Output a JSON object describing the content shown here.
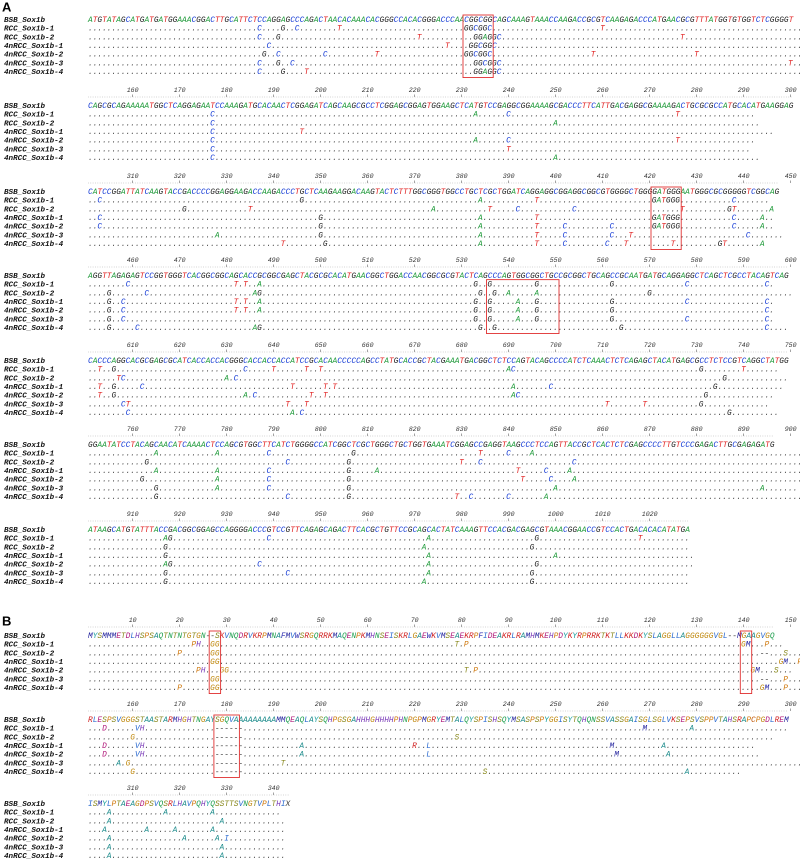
{
  "panels": [
    {
      "label": "A",
      "colors": {
        "A": "#1f9a3a",
        "C": "#1a3fd6",
        "G": "#222222",
        "T": "#e01f1f",
        ".": "#444444"
      },
      "blocks": [
        {
          "rows": [
            {
              "name": "BSB_Sox1b",
              "seq": "ATGTATAGCATGATGATGGAAACGGACTTGCATTCTCCAGGAGCCCAGACTAACACAAACACGGGCCACACGGGACCCAACGGCGGCAGCAAAGTAAACCAAGACCGCGTCAAGAGACCCATGAACGCGTTTATGGTGTGGTCTCGGGGT"
            },
            {
              "name": "RCC_Sox1b-1",
              "seq": "....................................C....G..C........T..........................GGCGGC.......................T..........................................."
            },
            {
              "name": "RCC_Sox1b-2",
              "seq": "....................................C...G.............................T...........GGAGGC......................................T........................."
            },
            {
              "name": "4nRCC_Sox1b-1",
              "seq": "......................................C.....................................T....GGCGGC......................................................................"
            },
            {
              "name": "4nRCC_Sox1b-2",
              "seq": ".....................................G..C.........C..........T..................GGCGGC.....................T.....................T......................."
            },
            {
              "name": "4nRCC_Sox1b-3",
              "seq": "....................................C...G..C......................................GGCGGC.............................................................T........"
            },
            {
              "name": "4nRCC_Sox1b-4",
              "seq": "....................................C....G....T...................................GGAGGC......................................................................"
            }
          ]
        },
        {
          "ruler": [
            160,
            170,
            180,
            190,
            200,
            210,
            220,
            230,
            240,
            250,
            260,
            270,
            280,
            290,
            300
          ],
          "rows": [
            {
              "name": "BSB_Sox1b",
              "seq": "CAGCGCAGAAAAATGGCTCAGGAGAATCCAAAGATGCACAACTCGGAGATCAGCAAGCGCCTCGGAGCGGAGTGGAAGCTCATGTCCGAGGCGGAAAAGCGACCCTTCATTGACGAGGCGAAAAGACTGCGCGCCATGCACATGAAGGAG"
            },
            {
              "name": "RCC_Sox1b-1",
              "seq": "..........................C.......................................................A......C...................................T................"
            },
            {
              "name": "RCC_Sox1b-2",
              "seq": "..........................C........................................................................A..........................................."
            },
            {
              "name": "4nRCC_Sox1b-1",
              "seq": "..........................C..................T...................................................................................................."
            },
            {
              "name": "4nRCC_Sox1b-2",
              "seq": "..........................C.......................................................A......C...................................T................"
            },
            {
              "name": "4nRCC_Sox1b-3",
              "seq": "..........................C..............................................................T..................................................."
            },
            {
              "name": "4nRCC_Sox1b-4",
              "seq": "..........................C........................................................................A..........................................."
            }
          ]
        },
        {
          "ruler": [
            310,
            320,
            330,
            340,
            350,
            360,
            370,
            380,
            390,
            400,
            410,
            420,
            430,
            440,
            450
          ],
          "rows": [
            {
              "name": "BSB_Sox1b",
              "seq": "CATCCGGATTATCAAGTACCGACCCCGGAGGAAGACCAAGACCCTGCTCAAGAAGGACAAGTACTCTTTGGCGGGTGGCCTGCTCGCTGGATCAGGAGGCGGAGGCGGCGTGGGGCTGGGGATGGGAATGGGCGCGGGGGTCGGCAG"
            },
            {
              "name": "RCC_Sox1b-1",
              "seq": "..C..........................................G.....................................A...........T........................GATGGG...........C......."
            },
            {
              "name": "RCC_Sox1b-2",
              "seq": "....................G.............T......................................A...........T.....C...........C......................T.........GT.......A"
            },
            {
              "name": "4nRCC_Sox1b-1",
              "seq": "..C..............................................G.................................A...........T........................GATGGG...........C.....A.."
            },
            {
              "name": "4nRCC_Sox1b-2",
              "seq": "..C..............................................G.................................A...........T.....C.........C........GATGGG...........C.....A.."
            },
            {
              "name": "4nRCC_Sox1b-3",
              "seq": "...........................A.....................G.................................A...........T.....C.........C...T........................C......."
            },
            {
              "name": "4nRCC_Sox1b-4",
              "seq": ".........................................T........G................................A...........T.....C........C...T.........T.........GT.......A"
            }
          ]
        },
        {
          "ruler": [
            460,
            470,
            480,
            490,
            500,
            510,
            520,
            530,
            540,
            550,
            560,
            570,
            580,
            590,
            600
          ],
          "rows": [
            {
              "name": "BSB_Sox1b",
              "seq": "AGGTTAGAGAGTCCGGTGGGTCACGGCGGCAGCACCGCGGCGAGCTACGCGCACATGAACGGCTGGACCAACGGCGCGTACTCAGCCCAGTGGCGGCTGCCGCGGCTGCAGCCGCAATGATGCAGGAGGCTCAGCTCGCCTACAGTCAG"
            },
            {
              "name": "RCC_Sox1b-1",
              "seq": "........C......................T.T..A.............................................G..G.........G...............G...............C................C."
            },
            {
              "name": "RCC_Sox1b-2",
              "seq": "....G.......C......................AG..............................................G..G..A.....A.......................G.............................."
            },
            {
              "name": "4nRCC_Sox1b-1",
              "seq": "....G..C.......................T.T..A.............................................G..G.....A...G...............G...............C................C."
            },
            {
              "name": "4nRCC_Sox1b-2",
              "seq": "....G..C.......................T.T..A.............................................G..G.....A...G...............G................................C."
            },
            {
              "name": "4nRCC_Sox1b-3",
              "seq": "....G..C..........................................................................G..G.....A...G...............G...............C................C."
            },
            {
              "name": "4nRCC_Sox1b-4",
              "seq": "....G.....C........................AG..............................................G..G..........................G..............................C...."
            }
          ]
        },
        {
          "ruler": [
            610,
            620,
            630,
            640,
            650,
            660,
            670,
            680,
            690,
            700,
            710,
            720,
            730,
            740,
            750
          ],
          "rows": [
            {
              "name": "BSB_Sox1b",
              "seq": "CACCCAGGCACGCGAGCGCATCACCACCACGGGCACCACCACCATCCGCACAACCCCCAGCCTATGCACCGCTACGAAATGACGGCTCTCCAGTACAGCCCCATCTCAAACTCTCAGAGCTACATGAGCGCCTCTCCGTCAGGCTATGG"
            },
            {
              "name": "RCC_Sox1b-1",
              "seq": "..T..G...........................C.....T......T..T.......................................AC.......................................G........T......."
            },
            {
              "name": "RCC_Sox1b-2",
              "seq": "......TC.....................A.C.......................................................................................................G............."
            },
            {
              "name": "4nRCC_Sox1b-1",
              "seq": "..T..G.....C...............................T......T.T.....................................A.......C..................................G.............."
            },
            {
              "name": "4nRCC_Sox1b-2",
              "seq": "..T..G...........................A.C...........T..T.......................................AC.......................................G.............."
            },
            {
              "name": "4nRCC_Sox1b-3",
              "seq": ".......CT.................................T...T...............................................................T.......T...........G.............."
            },
            {
              "name": "4nRCC_Sox1b-4",
              "seq": "........C..................................A.C..........................................................................................G.........."
            }
          ]
        },
        {
          "ruler": [
            760,
            770,
            780,
            790,
            800,
            810,
            820,
            830,
            840,
            850,
            860,
            870,
            880,
            890,
            900
          ],
          "rows": [
            {
              "name": "BSB_Sox1b",
              "seq": "GGAATATCCTACAGCAACATCAAAACTCCAGCGTGGCTTCATCTGGGGCCATCGGCTCGCTGGGCTGCTGGTGAAATCGGAGCCGAGGTAAGCCCTCCAGTTACCGCTCACTCTCGAGCCCCTTGTCCCGAGACTTGCGAGAGATG"
            },
            {
              "name": "RCC_Sox1b-1",
              "seq": "..............A............A..........C.................G..........................T.....C....A........................................................."
            },
            {
              "name": "RCC_Sox1b-2",
              "seq": "............G.............................C............G.......................T...C...................C......................................................"
            },
            {
              "name": "4nRCC_Sox1b-1",
              "seq": "..............A............A..........C................G.....A.............................T.....C....A..................................................."
            },
            {
              "name": "4nRCC_Sox1b-2",
              "seq": "...........G...............A..........C................G....................................T.....C....A..................................................."
            },
            {
              "name": "4nRCC_Sox1b-3",
              "seq": "..............G............A..........C................G...........................................A...........................................A......."
            },
            {
              "name": "4nRCC_Sox1b-4",
              "seq": "..............G...........................C............G......................T..C.......C.......A..........................................................."
            }
          ]
        },
        {
          "ruler": [
            910,
            920,
            930,
            940,
            950,
            960,
            970,
            980,
            990,
            1000,
            1010,
            1020
          ],
          "rows": [
            {
              "name": "BSB_Sox1b",
              "seq": "ATAAGCATGTATTTACCGACGGCGGAGCCAGGGGACCCGTCCGTTCAGAGCAGACTTCACGCTGTTCCGCAGCACTATCAAAGTTCCACGACGAGCGTAAACGGAACCGTCCACTGACACACATATGA"
            },
            {
              "name": "RCC_Sox1b-1",
              "seq": "................AG....................C.................................A......................G.....................T.........."
            },
            {
              "name": "RCC_Sox1b-2",
              "seq": "................G......................................................A......................G................................."
            },
            {
              "name": "4nRCC_Sox1b-1",
              "seq": "................G.......................................................A..........................A............................."
            },
            {
              "name": "4nRCC_Sox1b-2",
              "seq": "................AG..................C...................................A......................G................................."
            },
            {
              "name": "4nRCC_Sox1b-3",
              "seq": "................G.........................C.............................A.....................G................................."
            },
            {
              "name": "4nRCC_Sox1b-4",
              "seq": "................G......................................................A......................G................................."
            }
          ]
        }
      ]
    },
    {
      "label": "B",
      "colors": {
        "A": "#1a8a8a",
        "C": "#c05a10",
        "D": "#b01a7a",
        "E": "#b01a7a",
        "F": "#2a2ab0",
        "G": "#c08a10",
        "H": "#7a3ab8",
        "I": "#2a6ad0",
        "K": "#d02020",
        "L": "#2a6ad0",
        "M": "#1a1a9a",
        "N": "#20a050",
        "P": "#d07a10",
        "Q": "#20a050",
        "R": "#d02020",
        "S": "#8a8a20",
        "T": "#8a8a20",
        "V": "#2a6ad0",
        "W": "#2a2ab0",
        "Y": "#1aa0a0",
        "X": "#333333",
        "-": "#333333",
        ".": "#444444"
      },
      "blocks": [
        {
          "ruler": [
            10,
            20,
            30,
            40,
            50,
            60,
            70,
            80,
            90,
            100,
            110,
            120,
            130,
            140,
            150
          ],
          "rows": [
            {
              "name": "BSB_Sox1b",
              "seq": "MYSMMMETDLHSPSAQTNTNTGTGN--SKVNQDRVKRPMNAFMVWSRGQRRKMAQENPKMHNSEISKRLGAEWKVMSEAEKRPFIDEAKRLRAMHMKEHPDYKYRPRRKTKTLLKKDKYSLAGGLLAGGGGGGVGL--MGAAGVGQ"
            },
            {
              "name": "RCC_Sox1b-1",
              "seq": "......................PH..GG..................................................T.P..........................................................GM...P..."
            },
            {
              "name": "RCC_Sox1b-2",
              "seq": "...................P......GG...................................................................................................................--...S..."
            },
            {
              "name": "4nRCC_Sox1b-1",
              "seq": "..........................GG.......................................................................................................................GM..P...."
            },
            {
              "name": "4nRCC_Sox1b-2",
              "seq": ".......................PH...GG..................................................T.P..........................................................GM...S..."
            },
            {
              "name": "4nRCC_Sox1b-3",
              "seq": "..........................GG...................................................................................................................--...P..."
            },
            {
              "name": "4nRCC_Sox1b-4",
              "seq": "...................P......GG...................................................................................................................GM...P..."
            }
          ]
        },
        {
          "ruler": [
            160,
            170,
            180,
            190,
            200,
            210,
            220,
            230,
            240,
            250,
            260,
            270,
            280,
            290,
            300
          ],
          "rows": [
            {
              "name": "BSB_Sox1b",
              "seq": "RLESPSVGGGSTAASTARMHGHTNGAYSGQVAAAAAAAAAMMQEAQLAYSQHPGSGAHHHGHHHHPHNPGPMGRYEMTALQYSPISHSQYMSASPSPYGGISYTQHQNSSVASSGAISGLSGLVKSEPSVSPPVTAHSRAPCPGDLREM"
            },
            {
              "name": "RCC_Sox1b-1",
              "seq": "...D......VH...............------.....................................................................................M.........A...................."
            },
            {
              "name": "RCC_Sox1b-2",
              "seq": ".........G.................------.............................................S..................................................................."
            },
            {
              "name": "4nRCC_Sox1b-1",
              "seq": "...D......VH...............------............A.......................R..L......................................M..........A..................."
            },
            {
              "name": "4nRCC_Sox1b-2",
              "seq": "...D......VH...............------............A..........................L.......................................M..........A..................."
            },
            {
              "name": "4nRCC_Sox1b-3",
              "seq": "......A.G..................------........T.............................................................................................................."
            },
            {
              "name": "4nRCC_Sox1b-4",
              "seq": ".........G.................------...................................................S..........................................A..........."
            }
          ]
        },
        {
          "ruler": [
            310,
            320,
            330,
            340
          ],
          "rows": [
            {
              "name": "BSB_Sox1b",
              "seq": "ISMYLPTAEAGDPSVQSRLHAVPQHYQSSTTSVNGTVPLTHIX"
            },
            {
              "name": "RCC_Sox1b-1",
              "seq": "....A...........A.........A.............."
            },
            {
              "name": "RCC_Sox1b-2",
              "seq": "....A.......................A............."
            },
            {
              "name": "4nRCC_Sox1b-1",
              "seq": "...A........A.....A.......A..............."
            },
            {
              "name": "4nRCC_Sox1b-2",
              "seq": "....A...............A......A.I............"
            },
            {
              "name": "4nRCC_Sox1b-3",
              "seq": "....A.......................A............."
            },
            {
              "name": "4nRCC_Sox1b-4",
              "seq": "....A.......................A............."
            }
          ]
        }
      ]
    }
  ]
}
